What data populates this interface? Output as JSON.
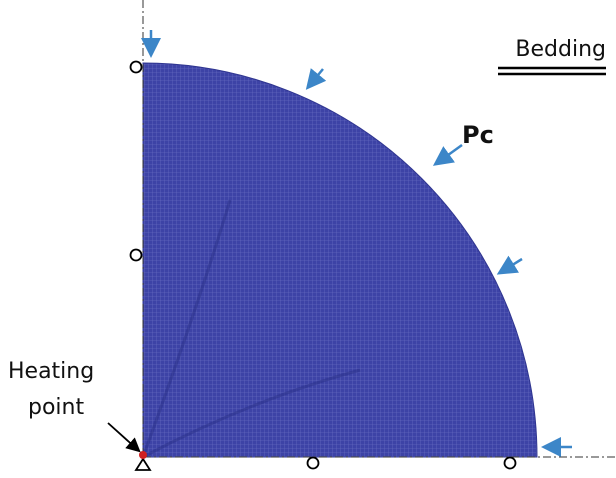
{
  "legend": {
    "label": "Bedding"
  },
  "annotations": {
    "pressure": "Pc",
    "heating_point": [
      "Heating",
      "point"
    ]
  }
}
